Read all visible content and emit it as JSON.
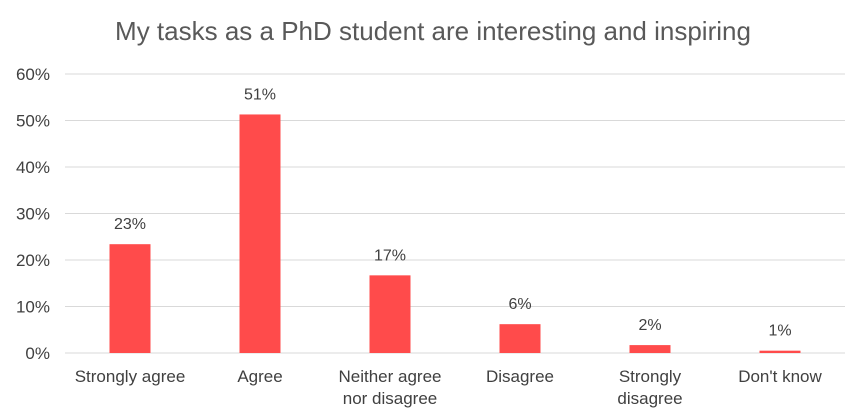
{
  "chart_data": {
    "type": "bar",
    "title": "My tasks as a PhD student are interesting and inspiring",
    "xlabel": "",
    "ylabel": "",
    "categories": [
      [
        "Strongly agree"
      ],
      [
        "Agree"
      ],
      [
        "Neither agree",
        "nor disagree"
      ],
      [
        "Disagree"
      ],
      [
        "Strongly",
        "disagree"
      ],
      [
        "Don't know"
      ]
    ],
    "values": [
      23.4,
      51.3,
      16.7,
      6.2,
      1.7,
      0.5
    ],
    "data_labels": [
      "23%",
      "51%",
      "17%",
      "6%",
      "2%",
      "1%"
    ],
    "ylim": [
      0,
      60
    ],
    "y_ticks": [
      0,
      10,
      20,
      30,
      40,
      50,
      60
    ],
    "y_tick_labels": [
      "0%",
      "10%",
      "20%",
      "30%",
      "40%",
      "50%",
      "60%"
    ],
    "grid": true,
    "legend": "none",
    "colors": {
      "bar": "#FF4B4B",
      "grid": "#D9D9D9",
      "axis_text": "#404040",
      "title": "#595959"
    }
  }
}
